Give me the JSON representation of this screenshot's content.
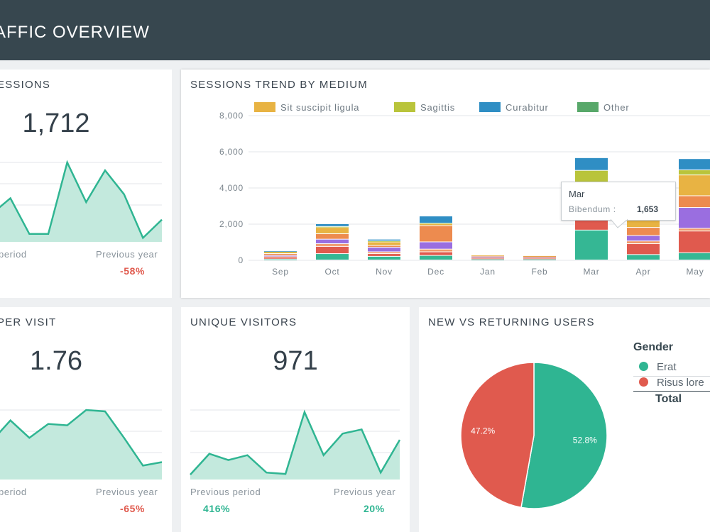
{
  "header": {
    "title": "AFFIC OVERVIEW"
  },
  "sessions_card": {
    "title": "ESSIONS",
    "value": "1,712",
    "prev_period_label": "period",
    "prev_year_label": "Previous year",
    "prev_year_value": "-58%",
    "sparkline": [
      0.35,
      0.55,
      0.1,
      0.1,
      1.0,
      0.5,
      0.9,
      0.6,
      0.05,
      0.28
    ]
  },
  "pages_card": {
    "title": "PER VISIT",
    "value": "1.76",
    "prev_period_label": "period",
    "prev_year_label": "Previous year",
    "prev_year_value": "-65%",
    "sparkline": [
      0.55,
      0.85,
      0.6,
      0.8,
      0.78,
      1.0,
      0.98,
      0.6,
      0.2,
      0.25
    ]
  },
  "visitors_card": {
    "title": "UNIQUE VISITORS",
    "value": "971",
    "prev_period_label": "Previous period",
    "prev_period_value": "416%",
    "prev_year_label": "Previous year",
    "prev_year_value": "20%",
    "sparkline": [
      0.07,
      0.37,
      0.28,
      0.35,
      0.1,
      0.08,
      0.97,
      0.35,
      0.66,
      0.72,
      0.1,
      0.57
    ]
  },
  "trend_card": {
    "title": "SESSIONS TREND BY MEDIUM"
  },
  "pie_card": {
    "title": "NEW VS RETURNING USERS",
    "legend_title": "Gender",
    "legend_items": [
      {
        "label": "Erat",
        "color": "#2fb592"
      },
      {
        "label": "Risus lore",
        "color": "#e05a4e"
      }
    ],
    "total_label": "Total"
  },
  "tooltip": {
    "title": "Mar",
    "label": "Bibendum :",
    "value": "1,653"
  },
  "colors": {
    "teal": "#2fb592",
    "teal_fill": "#c3e9dd",
    "red": "#e05a4e",
    "header": "#37474f"
  },
  "chart_data": [
    {
      "type": "bar",
      "stacked": true,
      "title": "SESSIONS TREND BY MEDIUM",
      "categories": [
        "Sep",
        "Oct",
        "Nov",
        "Dec",
        "Jan",
        "Feb",
        "Mar",
        "Apr",
        "May"
      ],
      "ylim": [
        0,
        8000
      ],
      "yticks": [
        "0",
        "2,000",
        "4,000",
        "6,000",
        "8,000"
      ],
      "legend": [
        {
          "name": "Sit suscipit ligula",
          "color": "#e8b343"
        },
        {
          "name": "Sagittis",
          "color": "#b9c43b"
        },
        {
          "name": "Curabitur",
          "color": "#2f8ec4"
        },
        {
          "name": "Other",
          "color": "#58a86a"
        }
      ],
      "series": [
        {
          "name": "Bibendum",
          "color": "#35b794",
          "values": [
            50,
            350,
            200,
            250,
            50,
            50,
            1653,
            300,
            400
          ]
        },
        {
          "name": "",
          "color": "#e05a4e",
          "values": [
            100,
            400,
            150,
            200,
            50,
            50,
            550,
            600,
            1200
          ]
        },
        {
          "name": "",
          "color": "#f09a6b",
          "values": [
            50,
            150,
            100,
            150,
            50,
            50,
            0,
            150,
            150
          ]
        },
        {
          "name": "",
          "color": "#9a6ee0",
          "values": [
            50,
            250,
            250,
            400,
            50,
            50,
            0,
            300,
            1150
          ]
        },
        {
          "name": "",
          "color": "#ed8b4f",
          "values": [
            100,
            300,
            100,
            900,
            50,
            20,
            0,
            450,
            650
          ]
        },
        {
          "name": "Sit suscipit ligula",
          "color": "#e8b343",
          "values": [
            100,
            350,
            200,
            100,
            20,
            20,
            1900,
            500,
            1150
          ]
        },
        {
          "name": "Sagittis",
          "color": "#b9c43b",
          "values": [
            30,
            50,
            50,
            30,
            0,
            0,
            850,
            0,
            280
          ]
        },
        {
          "name": "Curabitur",
          "color": "#2f8ec4",
          "values": [
            20,
            150,
            100,
            400,
            0,
            0,
            700,
            0,
            620
          ]
        },
        {
          "name": "Other",
          "color": "#58a86a",
          "values": [
            0,
            0,
            0,
            0,
            0,
            0,
            0,
            0,
            0
          ]
        }
      ]
    },
    {
      "type": "pie",
      "title": "NEW VS RETURNING USERS",
      "slices": [
        {
          "name": "Erat",
          "value": 52.8,
          "label": "52.8%",
          "color": "#2fb592"
        },
        {
          "name": "Risus lore",
          "value": 47.2,
          "label": "47.2%",
          "color": "#e05a4e"
        }
      ]
    }
  ]
}
